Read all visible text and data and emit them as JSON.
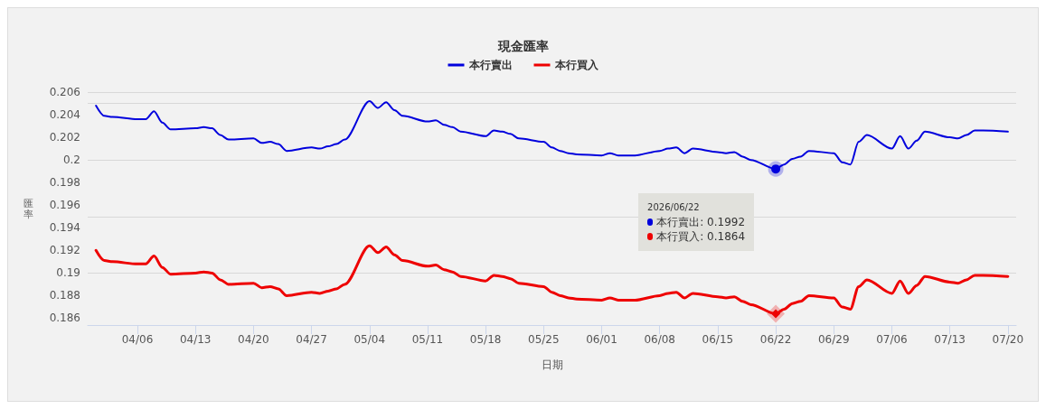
{
  "chart_data": {
    "type": "line",
    "title": "現金匯率",
    "xlabel": "日期",
    "ylabel": "匯率",
    "x": [
      "2026-04-01",
      "2026-04-02",
      "2026-04-03",
      "2026-04-06",
      "2026-04-07",
      "2026-04-08",
      "2026-04-09",
      "2026-04-10",
      "2026-04-13",
      "2026-04-14",
      "2026-04-15",
      "2026-04-16",
      "2026-04-17",
      "2026-04-20",
      "2026-04-21",
      "2026-04-22",
      "2026-04-23",
      "2026-04-24",
      "2026-04-27",
      "2026-04-28",
      "2026-04-29",
      "2026-04-30",
      "2026-05-01",
      "2026-05-04",
      "2026-05-05",
      "2026-05-06",
      "2026-05-07",
      "2026-05-08",
      "2026-05-11",
      "2026-05-12",
      "2026-05-13",
      "2026-05-14",
      "2026-05-15",
      "2026-05-18",
      "2026-05-19",
      "2026-05-20",
      "2026-05-21",
      "2026-05-22",
      "2026-05-25",
      "2026-05-26",
      "2026-05-27",
      "2026-05-28",
      "2026-05-29",
      "2026-06-01",
      "2026-06-02",
      "2026-06-03",
      "2026-06-04",
      "2026-06-05",
      "2026-06-08",
      "2026-06-09",
      "2026-06-10",
      "2026-06-11",
      "2026-06-12",
      "2026-06-15",
      "2026-06-16",
      "2026-06-17",
      "2026-06-18",
      "2026-06-19",
      "2026-06-22",
      "2026-06-23",
      "2026-06-24",
      "2026-06-25",
      "2026-06-26",
      "2026-06-29",
      "2026-06-30",
      "2026-07-01",
      "2026-07-02",
      "2026-07-03",
      "2026-07-06",
      "2026-07-07",
      "2026-07-08",
      "2026-07-09",
      "2026-07-10",
      "2026-07-13",
      "2026-07-14",
      "2026-07-15",
      "2026-07-16",
      "2026-07-17",
      "2026-07-20"
    ],
    "series": [
      {
        "name": "本行賣出",
        "color": "#0000dd",
        "values": [
          0.2048,
          0.2039,
          0.2038,
          0.2036,
          0.2036,
          0.2043,
          0.2033,
          0.2027,
          0.2028,
          0.2029,
          0.2028,
          0.2022,
          0.2018,
          0.2019,
          0.2015,
          0.2016,
          0.2014,
          0.2008,
          0.2011,
          0.201,
          0.2012,
          0.2014,
          0.2018,
          0.2052,
          0.2046,
          0.2051,
          0.2044,
          0.2039,
          0.2034,
          0.2035,
          0.2031,
          0.2029,
          0.2025,
          0.2021,
          0.2026,
          0.2025,
          0.2023,
          0.2019,
          0.2016,
          0.2011,
          0.2008,
          0.2006,
          0.2005,
          0.2004,
          0.2006,
          0.2004,
          0.2004,
          0.2004,
          0.2008,
          0.201,
          0.2011,
          0.2006,
          0.201,
          0.2007,
          0.2006,
          0.2007,
          0.2003,
          0.2,
          0.1992,
          0.1996,
          0.2001,
          0.2003,
          0.2008,
          0.2006,
          0.1998,
          0.1996,
          0.2016,
          0.2022,
          0.201,
          0.2021,
          0.201,
          0.2017,
          0.2025,
          0.202,
          0.2019,
          0.2022,
          0.2026,
          0.2026,
          0.2025
        ]
      },
      {
        "name": "本行買入",
        "color": "#ee0000",
        "values": [
          0.192,
          0.1911,
          0.191,
          0.1908,
          0.1908,
          0.1915,
          0.1905,
          0.1899,
          0.19,
          0.1901,
          0.19,
          0.1894,
          0.189,
          0.1891,
          0.1887,
          0.1888,
          0.1886,
          0.188,
          0.1883,
          0.1882,
          0.1884,
          0.1886,
          0.189,
          0.1924,
          0.1918,
          0.1923,
          0.1916,
          0.1911,
          0.1906,
          0.1907,
          0.1903,
          0.1901,
          0.1897,
          0.1893,
          0.1898,
          0.1897,
          0.1895,
          0.1891,
          0.1888,
          0.1883,
          0.188,
          0.1878,
          0.1877,
          0.1876,
          0.1878,
          0.1876,
          0.1876,
          0.1876,
          0.188,
          0.1882,
          0.1883,
          0.1878,
          0.1882,
          0.1879,
          0.1878,
          0.1879,
          0.1875,
          0.1872,
          0.1864,
          0.1868,
          0.1873,
          0.1875,
          0.188,
          0.1878,
          0.187,
          0.1868,
          0.1888,
          0.1894,
          0.1882,
          0.1893,
          0.1882,
          0.1889,
          0.1897,
          0.1892,
          0.1891,
          0.1894,
          0.1898,
          0.1898,
          0.1897
        ]
      }
    ],
    "xlim": [
      "2026-03-31",
      "2026-07-21"
    ],
    "xticks": [
      {
        "value": "2026-04-06",
        "label": "04/06"
      },
      {
        "value": "2026-04-13",
        "label": "04/13"
      },
      {
        "value": "2026-04-20",
        "label": "04/20"
      },
      {
        "value": "2026-04-27",
        "label": "04/27"
      },
      {
        "value": "2026-05-04",
        "label": "05/04"
      },
      {
        "value": "2026-05-11",
        "label": "05/11"
      },
      {
        "value": "2026-05-18",
        "label": "05/18"
      },
      {
        "value": "2026-05-25",
        "label": "05/25"
      },
      {
        "value": "2026-06-01",
        "label": "06/01"
      },
      {
        "value": "2026-06-08",
        "label": "06/08"
      },
      {
        "value": "2026-06-15",
        "label": "06/15"
      },
      {
        "value": "2026-06-22",
        "label": "06/22"
      },
      {
        "value": "2026-06-29",
        "label": "06/29"
      },
      {
        "value": "2026-07-06",
        "label": "07/06"
      },
      {
        "value": "2026-07-13",
        "label": "07/13"
      },
      {
        "value": "2026-07-20",
        "label": "07/20"
      }
    ],
    "ylim": [
      0.1854,
      0.206
    ],
    "yticks": [
      0.186,
      0.188,
      0.19,
      0.192,
      0.194,
      0.196,
      0.198,
      0.2,
      0.202,
      0.204,
      0.206
    ],
    "grid": "y",
    "legend": "top",
    "marker": "none",
    "line_style": "solid",
    "annotations": [
      "2026/06/22",
      "本行賣出: 0.1992",
      "本行買入: 0.1864"
    ]
  }
}
